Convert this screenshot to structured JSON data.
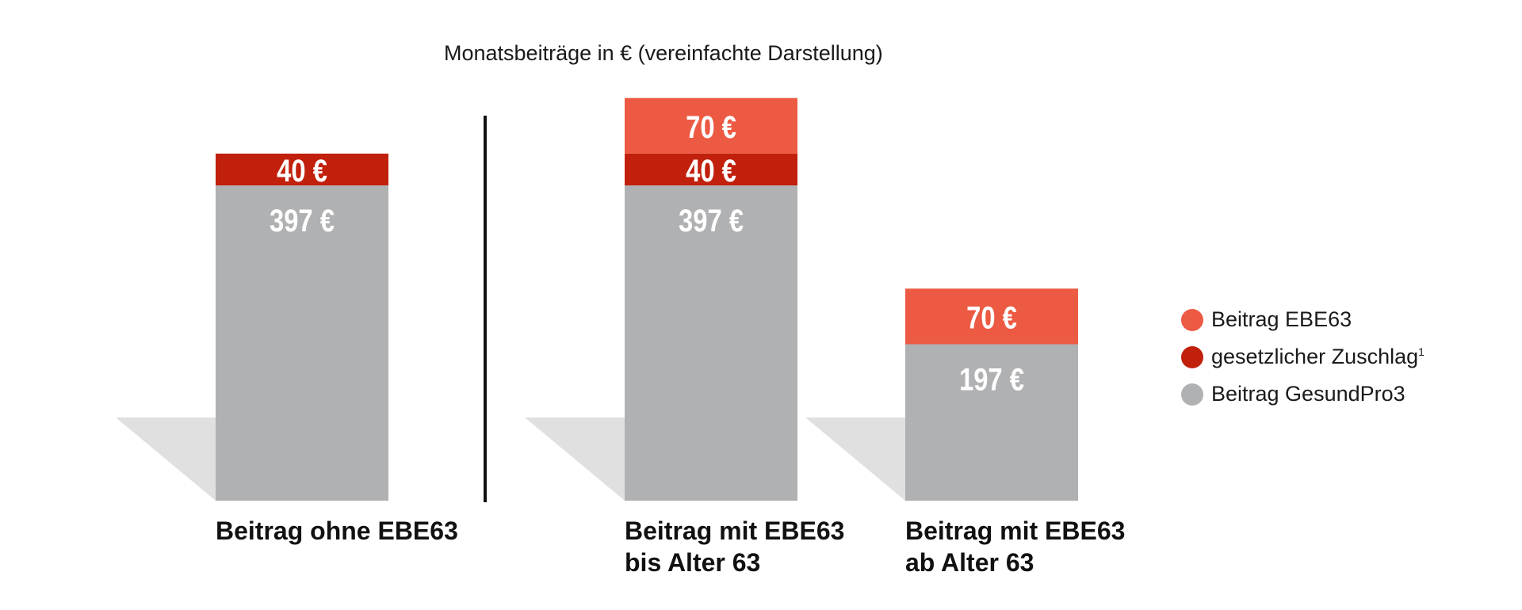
{
  "chart_data": {
    "type": "bar",
    "stacked": true,
    "subtitle": "Monatsbeiträge in € (vereinfachte Darstellung)",
    "categories": [
      [
        "Beitrag ohne EBE63"
      ],
      [
        "Beitrag mit EBE63",
        "bis Alter 63"
      ],
      [
        "Beitrag mit EBE63",
        "ab Alter 63"
      ]
    ],
    "series": [
      {
        "name": "Beitrag GesundPro3",
        "color": "#b0b1b3",
        "values": [
          397,
          397,
          197
        ],
        "labels": [
          "397 €",
          "397 €",
          "197 €"
        ]
      },
      {
        "name": "gesetzlicher Zuschlag",
        "color": "#c1200d",
        "values": [
          40,
          40,
          0
        ],
        "labels": [
          "40 €",
          "40 €",
          ""
        ]
      },
      {
        "name": "Beitrag EBE63",
        "color": "#ec5a43",
        "values": [
          0,
          70,
          70
        ],
        "labels": [
          "",
          "70 €",
          "70 €"
        ]
      }
    ],
    "legend": {
      "position": "right",
      "items": [
        {
          "label": "Beitrag EBE63",
          "color": "#ec5a43",
          "sup": ""
        },
        {
          "label": "gesetzlicher Zuschlag",
          "color": "#c1200d",
          "sup": "1"
        },
        {
          "label": "Beitrag GesundPro3",
          "color": "#b0b1b3",
          "sup": ""
        }
      ]
    },
    "divider_after_category": 0,
    "shadow_color": "#e0e0e0",
    "grid": false
  }
}
